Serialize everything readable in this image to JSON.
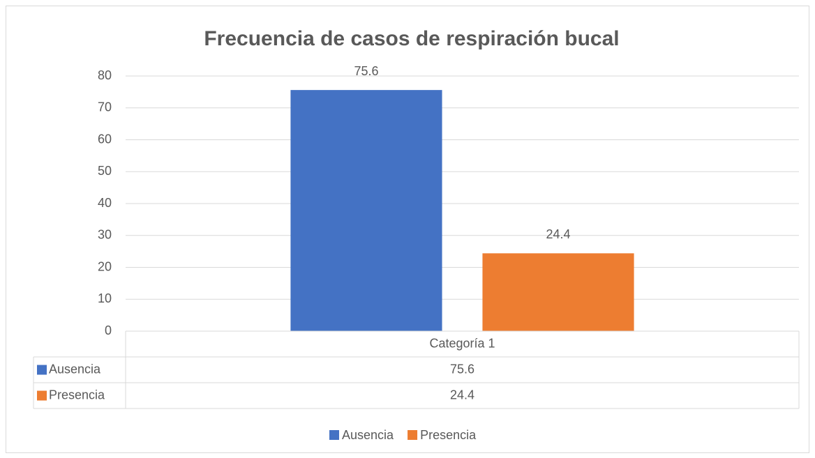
{
  "chart_data": {
    "type": "bar",
    "title": "Frecuencia de casos de respiración bucal",
    "categories": [
      "Categoría 1"
    ],
    "series": [
      {
        "name": "Ausencia",
        "color": "#4472c4",
        "values": [
          75.6
        ]
      },
      {
        "name": "Presencia",
        "color": "#ed7d31",
        "values": [
          24.4
        ]
      }
    ],
    "ylim": [
      0,
      80
    ],
    "yticks": [
      0,
      10,
      20,
      30,
      40,
      50,
      60,
      70,
      80
    ],
    "grid": true,
    "data_table": true,
    "legend": "bottom"
  }
}
